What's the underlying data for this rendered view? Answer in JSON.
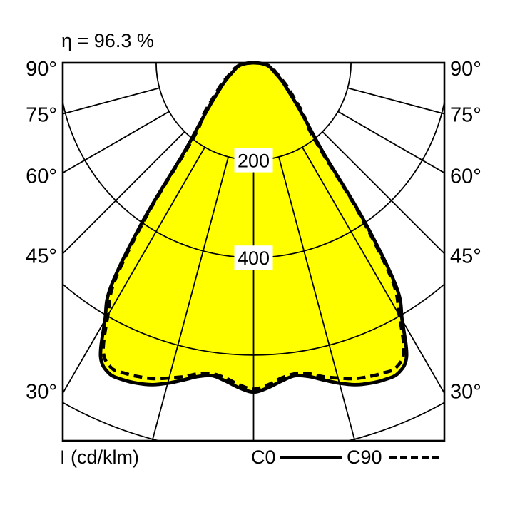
{
  "chart_data": {
    "type": "line",
    "subtype": "polar-photometric-intensity",
    "title": "η = 96.3 %",
    "efficiency_percent": 96.3,
    "radial_unit": "cd/klm",
    "axis_label": "I (cd/klm)",
    "angle_tick_labels_deg": [
      90,
      75,
      60,
      45,
      30
    ],
    "spoke_step_deg": 15,
    "radial_gridlines": [
      200,
      400,
      600,
      800
    ],
    "radial_gridline_labels": [
      "200",
      "400"
    ],
    "symmetric_about_vertical": true,
    "legend_position": "bottom",
    "grid": true,
    "series": [
      {
        "name": "C0",
        "line_style": "solid",
        "points_angle_deg_vs_intensity": [
          [
            0,
            676
          ],
          [
            2.5,
            668
          ],
          [
            5,
            656
          ],
          [
            7.5,
            648
          ],
          [
            10,
            654
          ],
          [
            12.5,
            667
          ],
          [
            15,
            681
          ],
          [
            17.5,
            693
          ],
          [
            20,
            700
          ],
          [
            22.5,
            704
          ],
          [
            25,
            703
          ],
          [
            27.5,
            680
          ],
          [
            30,
            610
          ],
          [
            32.5,
            545
          ],
          [
            35,
            395
          ],
          [
            37.5,
            243
          ],
          [
            40,
            187
          ],
          [
            42.5,
            155
          ],
          [
            45,
            131
          ],
          [
            47.5,
            112
          ],
          [
            50,
            97
          ],
          [
            52.5,
            86
          ],
          [
            55,
            77
          ],
          [
            57.5,
            69
          ],
          [
            60,
            61
          ],
          [
            65,
            49
          ],
          [
            70,
            41
          ],
          [
            75,
            35
          ],
          [
            80,
            27
          ],
          [
            85,
            15
          ],
          [
            90,
            0
          ]
        ]
      },
      {
        "name": "C90",
        "line_style": "dashed",
        "points_angle_deg_vs_intensity": [
          [
            0,
            670
          ],
          [
            2.5,
            662
          ],
          [
            5,
            650
          ],
          [
            7.5,
            644
          ],
          [
            10,
            648
          ],
          [
            12.5,
            660
          ],
          [
            15,
            670
          ],
          [
            17.5,
            680
          ],
          [
            20,
            686
          ],
          [
            22.5,
            690
          ],
          [
            25,
            691
          ],
          [
            27.5,
            668
          ],
          [
            30,
            598
          ],
          [
            32.5,
            530
          ],
          [
            35,
            380
          ],
          [
            37.5,
            230
          ],
          [
            40,
            176
          ],
          [
            42.5,
            158
          ],
          [
            45,
            140
          ],
          [
            47.5,
            120
          ],
          [
            50,
            105
          ],
          [
            52.5,
            93
          ],
          [
            55,
            84
          ],
          [
            57.5,
            74
          ],
          [
            60,
            66
          ],
          [
            65,
            53
          ],
          [
            70,
            45
          ],
          [
            75,
            38
          ],
          [
            80,
            30
          ],
          [
            85,
            17
          ],
          [
            90,
            0
          ]
        ]
      }
    ]
  },
  "legend": {
    "axis_label": "I (cd/klm)",
    "items": [
      {
        "label": "C0",
        "style": "solid"
      },
      {
        "label": "C90",
        "style": "dashed"
      }
    ]
  },
  "colors": {
    "beam_fill": "#FFFF00",
    "line": "#000000",
    "background": "#FFFFFF",
    "label_box": "#FFFFFF"
  }
}
